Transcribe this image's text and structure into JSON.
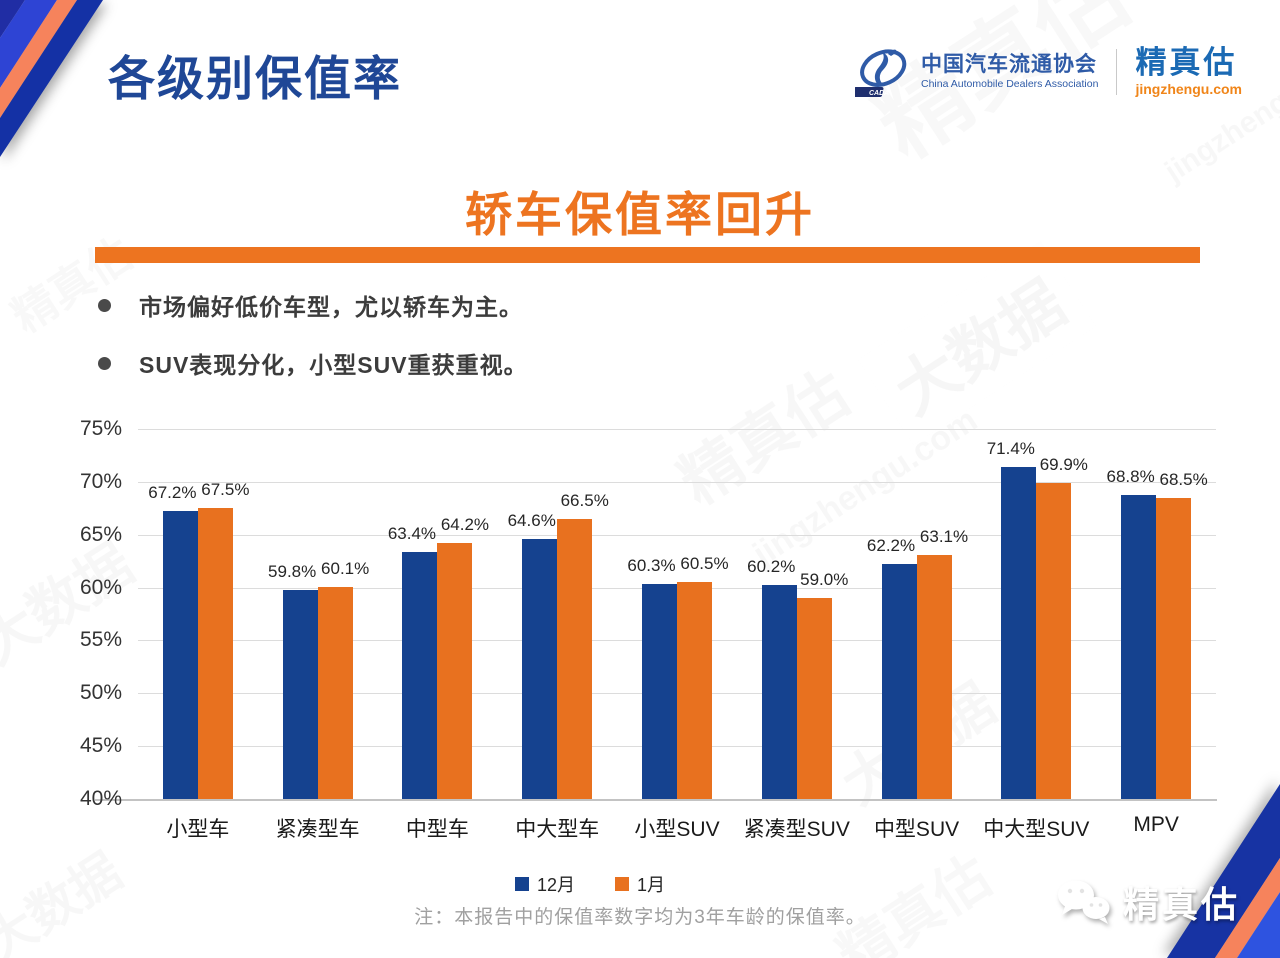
{
  "header": {
    "title": "各级别保值率",
    "cada": {
      "name_cn": "中国汽车流通协会",
      "name_en": "China Automobile Dealers Association",
      "badge": "CADA"
    },
    "jzg": {
      "name": "精真估",
      "site": "jingzhengu.com"
    }
  },
  "bullets": [
    "市场偏好低价车型，尤以轿车为主。",
    "SUV表现分化，小型SUV重获重视。"
  ],
  "chart_data": {
    "type": "bar",
    "title": "轿车保值率回升",
    "categories": [
      "小型车",
      "紧凑型车",
      "中型车",
      "中大型车",
      "小型SUV",
      "紧凑型SUV",
      "中型SUV",
      "中大型SUV",
      "MPV"
    ],
    "series": [
      {
        "name": "12月",
        "color": "#15428F",
        "values": [
          67.2,
          59.8,
          63.4,
          64.6,
          60.3,
          60.2,
          62.2,
          71.4,
          68.8
        ]
      },
      {
        "name": "1月",
        "color": "#E8711F",
        "values": [
          67.5,
          60.1,
          64.2,
          66.5,
          60.5,
          59.0,
          63.1,
          69.9,
          68.5
        ]
      }
    ],
    "ylim": [
      40,
      75
    ],
    "ytick_step": 5,
    "ytick_suffix": "%",
    "value_suffix": "%",
    "grid": true,
    "legend_position": "bottom"
  },
  "footer": {
    "note": "注：本报告中的保值率数字均为3年车龄的保值率。",
    "logo_text": "精真估"
  },
  "colors": {
    "accent_blue": "#1F4796",
    "accent_orange": "#ED7420",
    "bar_blue": "#15428F",
    "bar_orange": "#E8711F"
  },
  "watermarks": {
    "brand": "精真估",
    "bigdata": "大数据",
    "site": "jingzhengu.com"
  }
}
